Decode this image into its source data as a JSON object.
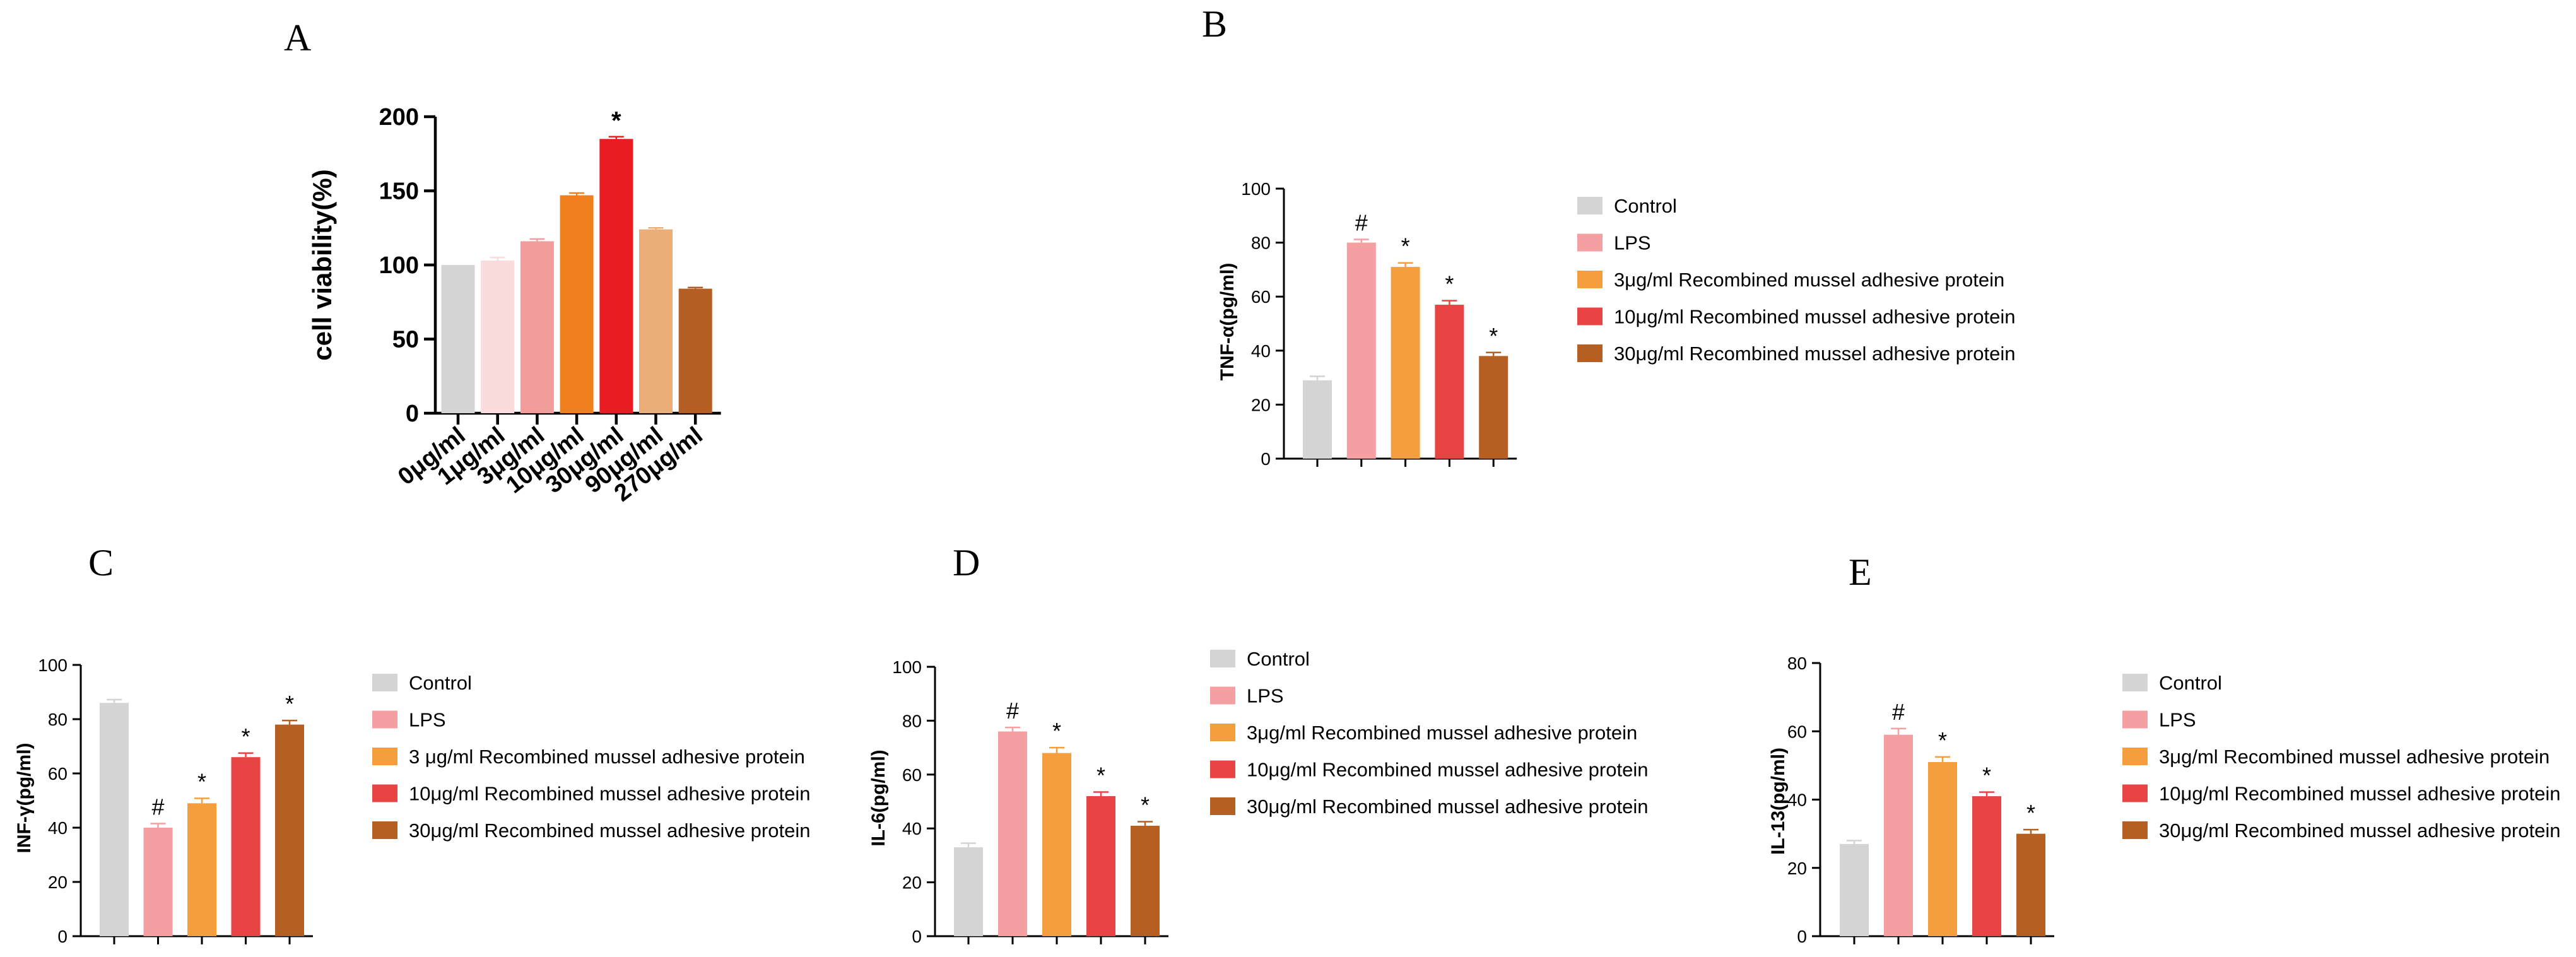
{
  "colors": {
    "axis": "#000000",
    "error": "#5a5a5a"
  },
  "chart_data": [
    {
      "panel": "A",
      "type": "bar",
      "title": "",
      "xlabel": "",
      "ylabel": "cell viability(%)",
      "ylim": [
        0,
        200
      ],
      "yticks": [
        "0",
        "50",
        "100",
        "150",
        "200"
      ],
      "categories": [
        "0μg/ml",
        "1μg/ml",
        "3μg/ml",
        "10μg/ml",
        "30μg/ml",
        "90μg/ml",
        "270μg/ml"
      ],
      "values": [
        100,
        103,
        116,
        147,
        185,
        124,
        84
      ],
      "errors": [
        0,
        2,
        1.5,
        1.5,
        1.5,
        1,
        0.8
      ],
      "colors": [
        "#d4d4d4",
        "#fbdcdc",
        "#f39c9c",
        "#f07f1e",
        "#e91c23",
        "#ebae78",
        "#b45e24"
      ],
      "annotations": [
        "",
        "",
        "",
        "",
        "*",
        "",
        ""
      ]
    },
    {
      "panel": "B",
      "type": "bar",
      "title": "",
      "xlabel": "",
      "ylabel": "TNF-α(pg/ml)",
      "ylim": [
        0,
        100
      ],
      "yticks": [
        "0",
        "20",
        "40",
        "60",
        "80",
        "100"
      ],
      "categories": [
        "Control",
        "LPS",
        "3μg/ml Recombined mussel adhesive protein",
        "10μg/ml Recombined mussel adhesive protein",
        "30μg/ml Recombined mussel adhesive protein"
      ],
      "values": [
        29,
        80,
        71,
        57,
        38
      ],
      "errors": [
        1.5,
        1.2,
        1.5,
        1.5,
        1.3
      ],
      "colors": [
        "#d4d4d4",
        "#f4a0a2",
        "#f49e3e",
        "#e84444",
        "#b55f22"
      ],
      "annotations": [
        "",
        "#",
        "*",
        "*",
        "*"
      ],
      "legend": [
        "Control",
        "LPS",
        "3μg/ml Recombined mussel adhesive protein",
        "10μg/ml Recombined mussel adhesive protein",
        "30μg/ml Recombined mussel adhesive protein"
      ]
    },
    {
      "panel": "C",
      "type": "bar",
      "title": "",
      "xlabel": "",
      "ylabel": "INF-γ(pg/ml)",
      "ylim": [
        0,
        100
      ],
      "yticks": [
        "0",
        "20",
        "40",
        "60",
        "80",
        "100"
      ],
      "categories": [
        "Control",
        "LPS",
        "3 μg/ml Recombined mussel adhesive protein",
        "10μg/ml Recombined mussel adhesive protein",
        "30μg/ml Recombined mussel adhesive protein"
      ],
      "values": [
        86,
        40,
        49,
        66,
        78
      ],
      "errors": [
        1.2,
        1.5,
        1.8,
        1.5,
        1.5
      ],
      "colors": [
        "#d4d4d4",
        "#f4a0a2",
        "#f49e3e",
        "#e84444",
        "#b55f22"
      ],
      "annotations": [
        "",
        "#",
        "*",
        "*",
        "*"
      ],
      "legend": [
        "Control",
        "LPS",
        "3 μg/ml Recombined mussel adhesive protein",
        "10μg/ml Recombined mussel adhesive protein",
        "30μg/ml Recombined mussel adhesive protein"
      ]
    },
    {
      "panel": "D",
      "type": "bar",
      "title": "",
      "xlabel": "",
      "ylabel": "IL-6(pg/ml)",
      "ylim": [
        0,
        100
      ],
      "yticks": [
        "0",
        "20",
        "40",
        "60",
        "80",
        "100"
      ],
      "categories": [
        "Control",
        "LPS",
        "3μg/ml Recombined mussel adhesive protein",
        "10μg/ml Recombined mussel  adhesive protein",
        "30μg/ml Recombined mussel  adhesive protein"
      ],
      "values": [
        33,
        76,
        68,
        52,
        41
      ],
      "errors": [
        1.5,
        1.5,
        2,
        1.5,
        1.5
      ],
      "colors": [
        "#d4d4d4",
        "#f4a0a2",
        "#f49e3e",
        "#e84444",
        "#b55f22"
      ],
      "annotations": [
        "",
        "#",
        "*",
        "*",
        "*"
      ],
      "legend": [
        "Control",
        "LPS",
        "3μg/ml Recombined mussel adhesive protein",
        "10μg/ml Recombined mussel  adhesive protein",
        "30μg/ml Recombined mussel  adhesive protein"
      ]
    },
    {
      "panel": "E",
      "type": "bar",
      "title": "",
      "xlabel": "",
      "ylabel": "IL-13(pg/ml)",
      "ylim": [
        0,
        80
      ],
      "yticks": [
        "0",
        "20",
        "40",
        "60",
        "80"
      ],
      "categories": [
        "Control",
        "LPS",
        "3μg/ml Recombined mussel adhesive protein",
        "10μg/ml Recombined mussel adhesive protein",
        "30μg/ml Recombined mussel adhesive protein"
      ],
      "values": [
        27,
        59,
        51,
        41,
        30
      ],
      "errors": [
        1,
        1.8,
        1.5,
        1.2,
        1.2
      ],
      "colors": [
        "#d4d4d4",
        "#f4a0a2",
        "#f49e3e",
        "#e84444",
        "#b55f22"
      ],
      "annotations": [
        "",
        "#",
        "*",
        "*",
        "*"
      ],
      "legend": [
        "Control",
        "LPS",
        "3μg/ml Recombined mussel adhesive protein",
        "10μg/ml Recombined mussel adhesive protein",
        "30μg/ml Recombined mussel adhesive protein"
      ]
    }
  ]
}
